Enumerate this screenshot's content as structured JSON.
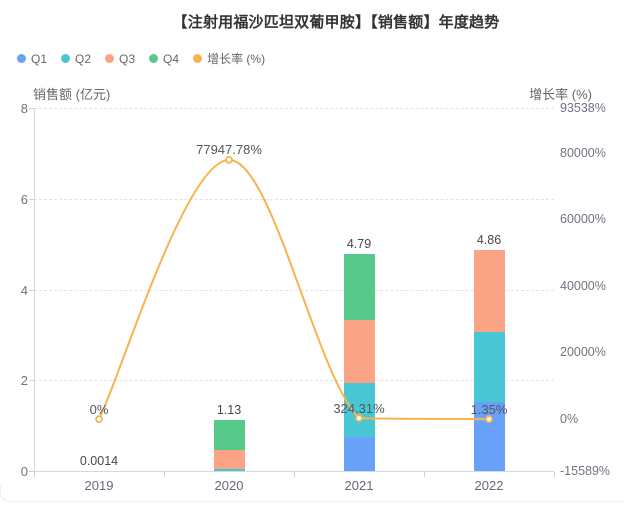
{
  "title": "【注射用福沙匹坦双葡甲胺】【销售额】年度趋势",
  "legend": {
    "items": [
      {
        "label": "Q1",
        "color": "#67A2F8"
      },
      {
        "label": "Q2",
        "color": "#49C6D4"
      },
      {
        "label": "Q3",
        "color": "#FAA385"
      },
      {
        "label": "Q4",
        "color": "#57C98B"
      },
      {
        "label": "增长率 (%)",
        "color": "#F7B44E"
      }
    ]
  },
  "chart_data": {
    "type": "bar+line",
    "categories": [
      "2019",
      "2020",
      "2021",
      "2022"
    ],
    "bar_series": [
      {
        "name": "Q1",
        "color": "#67A2F8",
        "values": [
          0,
          0,
          0.76,
          1.53
        ]
      },
      {
        "name": "Q2",
        "color": "#49C6D4",
        "values": [
          0,
          0.04,
          1.19,
          1.53
        ]
      },
      {
        "name": "Q3",
        "color": "#FAA385",
        "values": [
          0.0014,
          0.43,
          1.37,
          1.8
        ]
      },
      {
        "name": "Q4",
        "color": "#57C98B",
        "values": [
          0,
          0.66,
          1.47,
          0
        ]
      }
    ],
    "totals": [
      0.0014,
      1.13,
      4.79,
      4.86
    ],
    "total_labels": [
      "0.0014",
      "1.13",
      "4.79",
      "4.86"
    ],
    "line_series": {
      "name": "增长率 (%)",
      "color": "#F7B44E",
      "values": [
        0,
        77947.78,
        324.31,
        1.35
      ],
      "labels": [
        "0%",
        "77947.78%",
        "324.31%",
        "1.35%"
      ]
    },
    "left_axis": {
      "name": "销售额 (亿元)",
      "min": 0,
      "max": 8,
      "ticks": [
        0,
        2,
        4,
        6,
        8
      ]
    },
    "right_axis": {
      "name": "增长率 (%)",
      "min": -15589,
      "max": 93538,
      "tick_values": [
        93538,
        80000,
        60000,
        40000,
        20000,
        0,
        -15589
      ],
      "tick_labels": [
        "93538%",
        "80000%",
        "60000%",
        "40000%",
        "20000%",
        "0%",
        "-15589%"
      ]
    },
    "grid": "horizontal dashed",
    "legend_position": "top-left"
  }
}
